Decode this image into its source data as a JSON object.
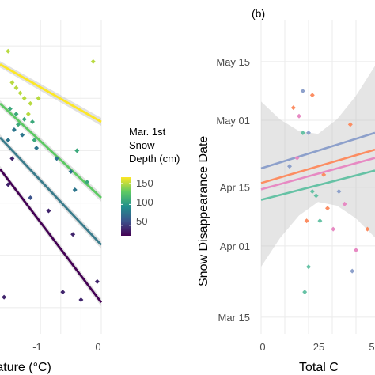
{
  "chart_data": [
    {
      "type": "scatter",
      "panel": "a",
      "xlabel": "Temperature (°C)",
      "x_tick_labels": [
        "-1",
        "0"
      ],
      "xlim": [
        -2.5,
        0
      ],
      "ylim": [
        75,
        135
      ],
      "legend": {
        "title": [
          "Mar. 1st",
          "Snow",
          "Depth (cm)"
        ],
        "type": "colorbar",
        "placement": "right",
        "range": [
          25,
          165
        ],
        "ticks": [
          150,
          100,
          50
        ],
        "colors": [
          "#440154",
          "#3b528b",
          "#21908d",
          "#5dc963",
          "#fde725"
        ]
      },
      "series": [
        {
          "depth": 150,
          "color": "#fde725",
          "x": [
            -2.5,
            0
          ],
          "y": [
            126.5,
            115.5
          ]
        },
        {
          "depth": 110,
          "color": "#5dc963",
          "x": [
            -2.5,
            0
          ],
          "y": [
            119,
            101
          ]
        },
        {
          "depth": 80,
          "color": "#3b7c8c",
          "x": [
            -2.5,
            0
          ],
          "y": [
            112.5,
            92
          ]
        },
        {
          "depth": 40,
          "color": "#440154",
          "x": [
            -2.5,
            0
          ],
          "y": [
            106.5,
            81
          ]
        }
      ],
      "points": [
        {
          "x": -2.2,
          "y": 123,
          "depth": 150
        },
        {
          "x": -2.3,
          "y": 129,
          "depth": 150
        },
        {
          "x": -2.1,
          "y": 122,
          "depth": 150
        },
        {
          "x": -2.0,
          "y": 121,
          "depth": 150
        },
        {
          "x": -1.9,
          "y": 120,
          "depth": 150
        },
        {
          "x": -1.75,
          "y": 119,
          "depth": 150
        },
        {
          "x": -1.55,
          "y": 120,
          "depth": 150
        },
        {
          "x": -1.8,
          "y": 117,
          "depth": 150
        },
        {
          "x": -0.2,
          "y": 127,
          "depth": 150
        },
        {
          "x": -2.25,
          "y": 118,
          "depth": 110
        },
        {
          "x": -2.1,
          "y": 117,
          "depth": 110
        },
        {
          "x": -2.05,
          "y": 115,
          "depth": 110
        },
        {
          "x": -1.9,
          "y": 116,
          "depth": 110
        },
        {
          "x": -1.7,
          "y": 115.5,
          "depth": 110
        },
        {
          "x": -1.65,
          "y": 112,
          "depth": 110
        },
        {
          "x": -0.6,
          "y": 110,
          "depth": 110
        },
        {
          "x": -0.35,
          "y": 104,
          "depth": 110
        },
        {
          "x": -2.15,
          "y": 114,
          "depth": 80
        },
        {
          "x": -2.3,
          "y": 112,
          "depth": 80
        },
        {
          "x": -1.95,
          "y": 113,
          "depth": 80
        },
        {
          "x": -1.6,
          "y": 110.5,
          "depth": 80
        },
        {
          "x": -1.1,
          "y": 108.5,
          "depth": 80
        },
        {
          "x": -0.75,
          "y": 106,
          "depth": 80
        },
        {
          "x": -0.65,
          "y": 102.5,
          "depth": 80
        },
        {
          "x": -2.2,
          "y": 108.5,
          "depth": 40
        },
        {
          "x": -2.3,
          "y": 103.5,
          "depth": 40
        },
        {
          "x": -1.75,
          "y": 101,
          "depth": 60
        },
        {
          "x": -1.3,
          "y": 98.5,
          "depth": 40
        },
        {
          "x": -0.7,
          "y": 94,
          "depth": 40
        },
        {
          "x": -0.95,
          "y": 83,
          "depth": 40
        },
        {
          "x": -0.5,
          "y": 81.5,
          "depth": 40
        },
        {
          "x": -0.1,
          "y": 85,
          "depth": 40
        },
        {
          "x": -2.4,
          "y": 82,
          "depth": 40
        }
      ]
    },
    {
      "type": "scatter",
      "panel": "b",
      "panel_tag": "(b)",
      "xlabel": "Total C",
      "ylabel": "Snow Disappearance Date",
      "x_tick_labels": [
        "0",
        "25",
        "5"
      ],
      "xlim": [
        0,
        60
      ],
      "y_tick_labels": [
        "May 15",
        "May 01",
        "Apr 15",
        "Apr 01",
        "Mar 15"
      ],
      "y_tick_values": [
        135,
        121,
        105,
        91,
        74
      ],
      "ylim": [
        70,
        145
      ],
      "series": [
        {
          "color": "#8da0cb",
          "x": [
            0,
            60
          ],
          "y": [
            109.5,
            118
          ]
        },
        {
          "color": "#fc8d62",
          "x": [
            0,
            60
          ],
          "y": [
            106,
            114
          ]
        },
        {
          "color": "#e78ac3",
          "x": [
            0,
            60
          ],
          "y": [
            104.5,
            112
          ]
        },
        {
          "color": "#66c2a5",
          "x": [
            0,
            60
          ],
          "y": [
            102,
            109
          ]
        }
      ],
      "points": [
        {
          "x": 22,
          "y": 128,
          "color": "#8da0cb"
        },
        {
          "x": 17,
          "y": 124,
          "color": "#fc8d62"
        },
        {
          "x": 20,
          "y": 122,
          "color": "#e78ac3"
        },
        {
          "x": 22,
          "y": 118,
          "color": "#66c2a5"
        },
        {
          "x": 25,
          "y": 118,
          "color": "#8da0cb"
        },
        {
          "x": 27,
          "y": 127,
          "color": "#fc8d62"
        },
        {
          "x": 19,
          "y": 112,
          "color": "#e78ac3"
        },
        {
          "x": 15,
          "y": 110,
          "color": "#8da0cb"
        },
        {
          "x": 27,
          "y": 104,
          "color": "#66c2a5"
        },
        {
          "x": 33,
          "y": 108,
          "color": "#fc8d62"
        },
        {
          "x": 29,
          "y": 103,
          "color": "#66c2a5"
        },
        {
          "x": 35,
          "y": 100,
          "color": "#fc8d62"
        },
        {
          "x": 41,
          "y": 104,
          "color": "#8da0cb"
        },
        {
          "x": 44,
          "y": 101,
          "color": "#e78ac3"
        },
        {
          "x": 24,
          "y": 97,
          "color": "#fc8d62"
        },
        {
          "x": 31,
          "y": 97,
          "color": "#66c2a5"
        },
        {
          "x": 38,
          "y": 95,
          "color": "#e78ac3"
        },
        {
          "x": 25,
          "y": 86,
          "color": "#66c2a5"
        },
        {
          "x": 23,
          "y": 80,
          "color": "#66c2a5"
        },
        {
          "x": 47,
          "y": 120,
          "color": "#fc8d62"
        },
        {
          "x": 56,
          "y": 95,
          "color": "#fc8d62"
        },
        {
          "x": 50,
          "y": 90,
          "color": "#e78ac3"
        },
        {
          "x": 48,
          "y": 85,
          "color": "#8da0cb"
        }
      ]
    }
  ]
}
